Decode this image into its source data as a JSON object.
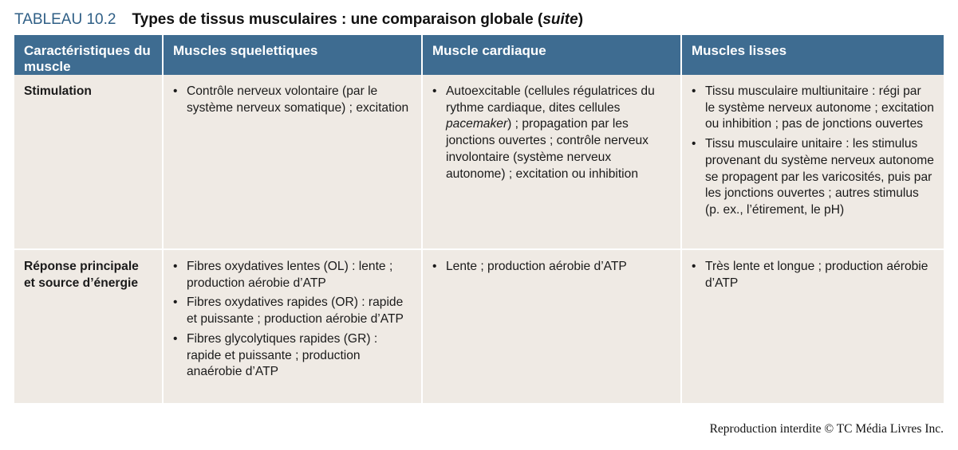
{
  "title": {
    "number": "TABLEAU 10.2",
    "text": "Types de tissus musculaires : une comparaison globale (",
    "emphasis": "suite",
    "close": ")"
  },
  "table": {
    "headers": [
      "Caractéristiques du muscle",
      "Muscles squelettiques",
      "Muscle cardiaque",
      "Muscles lisses"
    ],
    "rows": [
      {
        "label": "Stimulation",
        "skeletal": [
          "Contrôle nerveux volontaire (par le système nerveux somatique) ; excitation"
        ],
        "cardiac": {
          "before": "Autoexcitable (cellules régulatrices du rythme cardiaque, dites cellules ",
          "italic": "pacemaker",
          "after": ") ; propagation par les jonctions ouvertes ; contrôle nerveux involontaire (système nerveux autonome) ; excitation ou inhibition"
        },
        "smooth": [
          "Tissu musculaire multiunitaire : régi par le système nerveux autonome ; excitation ou inhibition ; pas de jonctions ouvertes",
          "Tissu musculaire unitaire : les stimulus provenant du système nerveux autonome se propagent par les varicosités, puis par les jonctions ouvertes ; autres stimulus (p. ex., l’étirement, le pH)"
        ]
      },
      {
        "label": "Réponse principale et source d’énergie",
        "skeletal": [
          "Fibres oxydatives lentes (OL) : lente ; production aérobie d’ATP",
          "Fibres oxydatives rapides (OR) : rapide et puissante ; production aérobie d’ATP",
          "Fibres glycolytiques rapides (GR) : rapide et puissante ; production anaérobie d’ATP"
        ],
        "cardiac": [
          "Lente ; production aérobie d’ATP"
        ],
        "smooth": [
          "Très lente et longue ; production aérobie d’ATP"
        ]
      }
    ]
  },
  "footer": "Reproduction interdite © TC Média Livres Inc.",
  "colors": {
    "header_bg": "#3e6c91",
    "cell_bg": "#efeae4",
    "title_number": "#2f5f86"
  }
}
